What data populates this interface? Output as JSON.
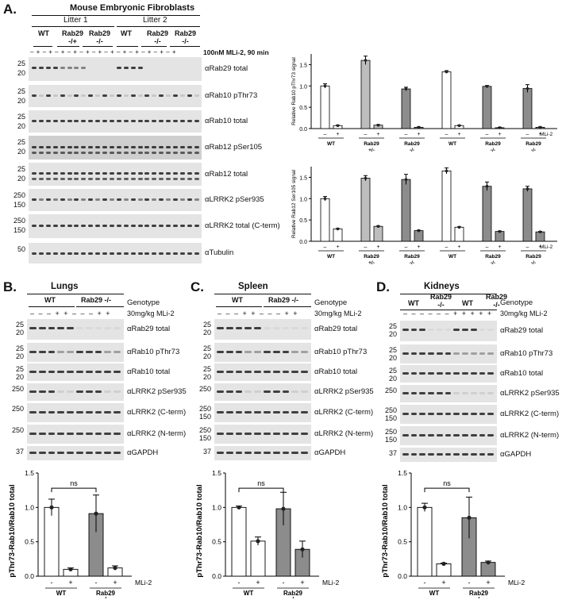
{
  "panelA": {
    "letter": "A.",
    "header": "Mouse Embryonic Fibroblasts",
    "litter1": "Litter 1",
    "litter2": "Litter 2",
    "genotypes": [
      "WT",
      "Rab29\n-/+",
      "Rab29\n-/-",
      "WT",
      "Rab29\n-/-",
      "Rab29\n-/-"
    ],
    "treatment": "100nM MLi-2, 90 min",
    "signs": "– + – + – + – + – + – + – + – + – + – + – + – +",
    "blots": [
      {
        "label": "αRab29 total",
        "markers": [
          "25",
          "20"
        ]
      },
      {
        "label": "αRab10 pThr73",
        "markers": [
          "25",
          "20"
        ]
      },
      {
        "label": "αRab10 total",
        "markers": [
          "25",
          "20"
        ]
      },
      {
        "label": "αRab12 pSer105",
        "markers": [
          "25",
          "20"
        ]
      },
      {
        "label": "αRab12 total",
        "markers": [
          "25",
          "20"
        ]
      },
      {
        "label": "αLRRK2 pSer935",
        "markers": [
          "250",
          "150"
        ]
      },
      {
        "label": "αLRRK2 total (C-term)",
        "markers": [
          "250",
          "150"
        ]
      },
      {
        "label": "αTubulin",
        "markers": [
          "50"
        ]
      }
    ]
  },
  "chartA1": {
    "ylabel": "Relative Rab10 pThr73 signal",
    "yticks": [
      "0.0",
      "0.5",
      "1.0",
      "1.5"
    ],
    "mli": "MLi-2",
    "groups": [
      "WT",
      "Rab29\n+/-",
      "Rab29\n-/-",
      "WT",
      "Rab29\n-/-",
      "Rab29\n-/-"
    ]
  },
  "chartA2": {
    "ylabel": "Relative Rab12 Ser105 signal",
    "yticks": [
      "0.0",
      "0.5",
      "1.0",
      "1.5"
    ],
    "mli": "MLi-2",
    "groups": [
      "WT",
      "Rab29\n+/-",
      "Rab29\n-/-",
      "WT",
      "Rab29\n-/-",
      "Rab29\n-/-"
    ]
  },
  "panels": [
    {
      "letter": "B.",
      "tissue": "Lungs",
      "g1": "WT",
      "g2": "Rab29 -/-",
      "genotype": "Genotype",
      "dose": "30mg/kg MLi-2",
      "signs": "– – – + + – – – + +",
      "blots": [
        {
          "label": "αRab29 total",
          "markers": [
            "25",
            "20"
          ]
        },
        {
          "label": "αRab10 pThr73",
          "markers": [
            "25",
            "20"
          ]
        },
        {
          "label": "αRab10 total",
          "markers": [
            "25",
            "20"
          ]
        },
        {
          "label": "αLRRK2 pSer935",
          "markers": [
            "250"
          ]
        },
        {
          "label": "αLRRK2 (C-term)",
          "markers": [
            "250"
          ]
        },
        {
          "label": "αLRRK2 (N-term)",
          "markers": [
            "250"
          ]
        },
        {
          "label": "αGAPDH",
          "markers": [
            "37"
          ]
        }
      ],
      "ylabel": "pThr73-Rab10/Rab10 total",
      "ns": "ns"
    },
    {
      "letter": "C.",
      "tissue": "Spleen",
      "g1": "WT",
      "g2": "Rab29 -/-",
      "genotype": "Genotype",
      "dose": "30mg/kg MLi-2",
      "signs": "– – – + + – – – + +",
      "blots": [
        {
          "label": "αRab29 total",
          "markers": [
            "25",
            "20"
          ]
        },
        {
          "label": "αRab10 pThr73",
          "markers": [
            "25",
            "20"
          ]
        },
        {
          "label": "αRab10 total",
          "markers": [
            "25",
            "20"
          ]
        },
        {
          "label": "αLRRK2 pSer935",
          "markers": [
            "250"
          ]
        },
        {
          "label": "αLRRK2 (C-term)",
          "markers": [
            "250",
            "150"
          ]
        },
        {
          "label": "αLRRK2 (N-term)",
          "markers": [
            "250",
            "150"
          ]
        },
        {
          "label": "αGAPDH",
          "markers": [
            "37"
          ]
        }
      ],
      "ylabel": "pThr73-Rab10/Rab10 total",
      "ns": "ns"
    },
    {
      "letter": "D.",
      "tissue": "Kidneys",
      "g1": "WT",
      "g2": "Rab29\n-/-",
      "g3": "WT",
      "g4": "Rab29\n-/-",
      "genotype": "Genotype",
      "dose": "30mg/kg MLi-2",
      "signs": "– – – – – – + + + + +",
      "blots": [
        {
          "label": "αRab29 total",
          "markers": [
            "25",
            "20"
          ]
        },
        {
          "label": "αRab10 pThr73",
          "markers": [
            "25",
            "20"
          ]
        },
        {
          "label": "αRab10 total",
          "markers": [
            "25",
            "20"
          ]
        },
        {
          "label": "αLRRK2 pSer935",
          "markers": [
            "250"
          ]
        },
        {
          "label": "αLRRK2 (C-term)",
          "markers": [
            "250",
            "150"
          ]
        },
        {
          "label": "αLRRK2 (N-term)",
          "markers": [
            "250",
            "150"
          ]
        },
        {
          "label": "αGAPDH",
          "markers": [
            "37"
          ]
        }
      ],
      "ylabel": "pThr73-Rab10/Rab10 total",
      "ns": "ns"
    }
  ],
  "bottomCharts": {
    "yticks": [
      "0.0",
      "0.5",
      "1.0",
      "1.5"
    ],
    "mli": "MLi-2",
    "xsigns": [
      "-",
      "+",
      "-",
      "+"
    ],
    "xgroups": [
      "WT",
      "Rab29\n-/-"
    ]
  },
  "chart_data": [
    {
      "type": "bar",
      "title": "",
      "ylabel": "Relative Rab10 pThr73 signal",
      "ylim": [
        0,
        1.75
      ],
      "categories": [
        "WT -",
        "WT +",
        "Rab29 +/- -",
        "Rab29 +/- +",
        "Rab29 -/- -",
        "Rab29 -/- +",
        "WT -",
        "WT +",
        "Rab29 -/- -",
        "Rab29 -/- +",
        "Rab29 -/- -",
        "Rab29 -/- +"
      ],
      "values": [
        1.0,
        0.07,
        1.6,
        0.08,
        0.93,
        0.03,
        1.33,
        0.07,
        0.99,
        0.02,
        0.94,
        0.03
      ],
      "errors": [
        0.05,
        0.01,
        0.1,
        0.01,
        0.04,
        0.01,
        0.03,
        0.01,
        0.02,
        0.01,
        0.09,
        0.01
      ],
      "colors": [
        "#ffffff",
        "#ffffff",
        "#bdbdbd",
        "#bdbdbd",
        "#8c8c8c",
        "#8c8c8c",
        "#ffffff",
        "#ffffff",
        "#8c8c8c",
        "#8c8c8c",
        "#8c8c8c",
        "#8c8c8c"
      ]
    },
    {
      "type": "bar",
      "title": "",
      "ylabel": "Relative Rab12 Ser105 signal",
      "ylim": [
        0,
        1.75
      ],
      "categories": [
        "WT -",
        "WT +",
        "Rab29 +/- -",
        "Rab29 +/- +",
        "Rab29 -/- -",
        "Rab29 -/- +",
        "WT -",
        "WT +",
        "Rab29 -/- -",
        "Rab29 -/- +",
        "Rab29 -/- -",
        "Rab29 -/- +"
      ],
      "values": [
        1.0,
        0.29,
        1.48,
        0.35,
        1.45,
        0.25,
        1.65,
        0.33,
        1.29,
        0.23,
        1.23,
        0.22
      ],
      "errors": [
        0.05,
        0.01,
        0.06,
        0.01,
        0.12,
        0.01,
        0.07,
        0.01,
        0.1,
        0.01,
        0.06,
        0.01
      ],
      "colors": [
        "#ffffff",
        "#ffffff",
        "#bdbdbd",
        "#bdbdbd",
        "#8c8c8c",
        "#8c8c8c",
        "#ffffff",
        "#ffffff",
        "#8c8c8c",
        "#8c8c8c",
        "#8c8c8c",
        "#8c8c8c"
      ]
    },
    {
      "type": "bar",
      "title": "Lungs",
      "ylabel": "pThr73-Rab10/Rab10 total",
      "ylim": [
        0,
        1.5
      ],
      "categories": [
        "WT -",
        "WT +",
        "Rab29 -/- -",
        "Rab29 -/- +"
      ],
      "values": [
        1.0,
        0.1,
        0.91,
        0.12
      ],
      "errors": [
        0.12,
        0.02,
        0.27,
        0.03
      ],
      "colors": [
        "#ffffff",
        "#ffffff",
        "#8c8c8c",
        "#ffffff"
      ]
    },
    {
      "type": "bar",
      "title": "Spleen",
      "ylabel": "pThr73-Rab10/Rab10 total",
      "ylim": [
        0,
        1.5
      ],
      "categories": [
        "WT -",
        "WT +",
        "Rab29 -/- -",
        "Rab29 -/- +"
      ],
      "values": [
        1.0,
        0.51,
        0.98,
        0.39
      ],
      "errors": [
        0.02,
        0.06,
        0.24,
        0.12
      ],
      "colors": [
        "#ffffff",
        "#ffffff",
        "#8c8c8c",
        "#8c8c8c"
      ]
    },
    {
      "type": "bar",
      "title": "Kidneys",
      "ylabel": "pThr73-Rab10/Rab10 total",
      "ylim": [
        0,
        1.5
      ],
      "categories": [
        "WT -",
        "WT +",
        "Rab29 -/- -",
        "Rab29 -/- +"
      ],
      "values": [
        1.0,
        0.18,
        0.85,
        0.2
      ],
      "errors": [
        0.06,
        0.01,
        0.3,
        0.02
      ],
      "colors": [
        "#ffffff",
        "#ffffff",
        "#8c8c8c",
        "#8c8c8c"
      ]
    }
  ]
}
